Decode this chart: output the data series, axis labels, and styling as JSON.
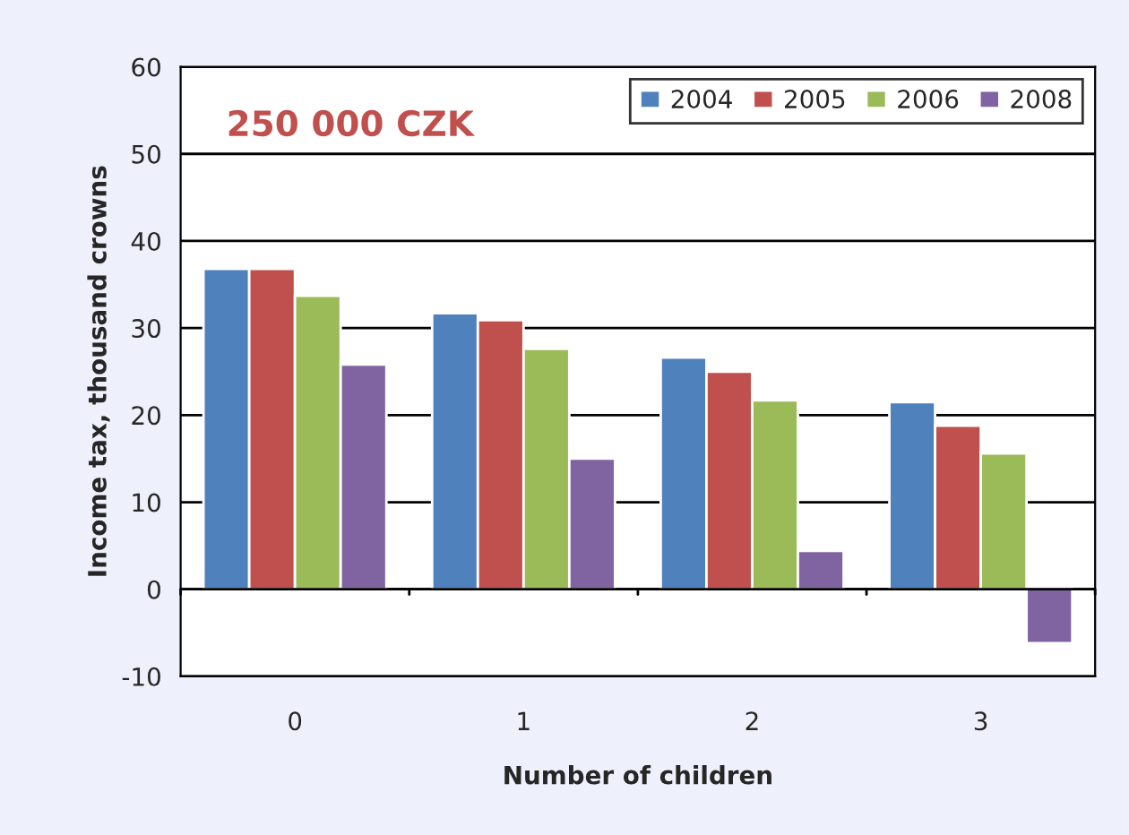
{
  "chart_data": {
    "type": "bar",
    "xlabel": "Number of children",
    "ylabel": "Income tax, thousand crowns",
    "annotations": [
      "250 000 CZK"
    ],
    "categories": [
      "0",
      "1",
      "2",
      "3"
    ],
    "series": [
      {
        "name": "2004",
        "color": "#4f81bd",
        "values": [
          36.8,
          31.7,
          26.6,
          21.5
        ]
      },
      {
        "name": "2005",
        "color": "#c0504d",
        "values": [
          36.8,
          30.9,
          25.0,
          18.8
        ]
      },
      {
        "name": "2006",
        "color": "#9bbb59",
        "values": [
          33.7,
          27.6,
          21.7,
          15.6
        ]
      },
      {
        "name": "2008",
        "color": "#8064a2",
        "values": [
          25.8,
          15.0,
          4.4,
          -6.2
        ]
      }
    ],
    "ylim": [
      -10,
      60
    ],
    "yticks": [
      -10,
      0,
      10,
      20,
      30,
      40,
      50,
      60
    ],
    "grid": "y",
    "legend": "top right"
  }
}
